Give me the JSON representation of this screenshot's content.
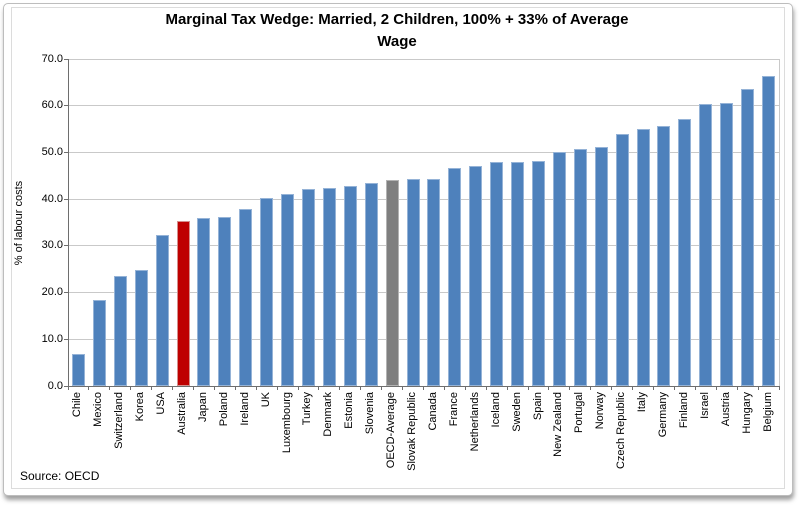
{
  "source_note": "Source: OECD",
  "chart_data": {
    "type": "bar",
    "title": "Marginal Tax Wedge: Married, 2 Children, 100% + 33% of Average Wage",
    "title_line1": "Marginal Tax Wedge: Married, 2 Children, 100% + 33% of Average",
    "title_line2": "Wage",
    "xlabel": "",
    "ylabel": "% of labour costs",
    "ylim": [
      0,
      70
    ],
    "ytick_labels": [
      "0.0",
      "10.0",
      "20.0",
      "30.0",
      "40.0",
      "50.0",
      "60.0",
      "70.0"
    ],
    "grid": true,
    "legend": "none",
    "categories": [
      "Chile",
      "Mexico",
      "Switzerland",
      "Korea",
      "USA",
      "Australia",
      "Japan",
      "Poland",
      "Ireland",
      "UK",
      "Luxembourg",
      "Turkey",
      "Denmark",
      "Estonia",
      "Slovenia",
      "OECD-Average",
      "Slovak Republic",
      "Canada",
      "France",
      "Netherlands",
      "Iceland",
      "Sweden",
      "Spain",
      "New Zealand",
      "Portugal",
      "Norway",
      "Czech Republic",
      "Italy",
      "Germany",
      "Finland",
      "Israel",
      "Austria",
      "Hungary",
      "Belgium"
    ],
    "values": [
      6.9,
      18.4,
      23.6,
      24.9,
      32.4,
      35.4,
      36.0,
      36.1,
      37.8,
      40.2,
      41.0,
      42.2,
      42.3,
      42.9,
      43.5,
      44.2,
      44.4,
      44.4,
      46.7,
      47.2,
      48.0,
      48.0,
      48.1,
      50.1,
      50.7,
      51.2,
      54.0,
      55.0,
      55.6,
      57.2,
      60.4,
      60.5,
      63.6,
      66.4
    ],
    "highlight_category": "Australia",
    "neutral_category": "OECD-Average",
    "colors": {
      "bar_default": "#4E81BC",
      "bar_default_border": "#95B3D7",
      "bar_highlight": "#BE0000",
      "bar_highlight_border": "#D58F8D",
      "bar_neutral": "#7F7F7F",
      "bar_neutral_border": "#B3B3B3",
      "gridline": "#c9c9c9",
      "axis_line": "#6e6e6e"
    }
  }
}
